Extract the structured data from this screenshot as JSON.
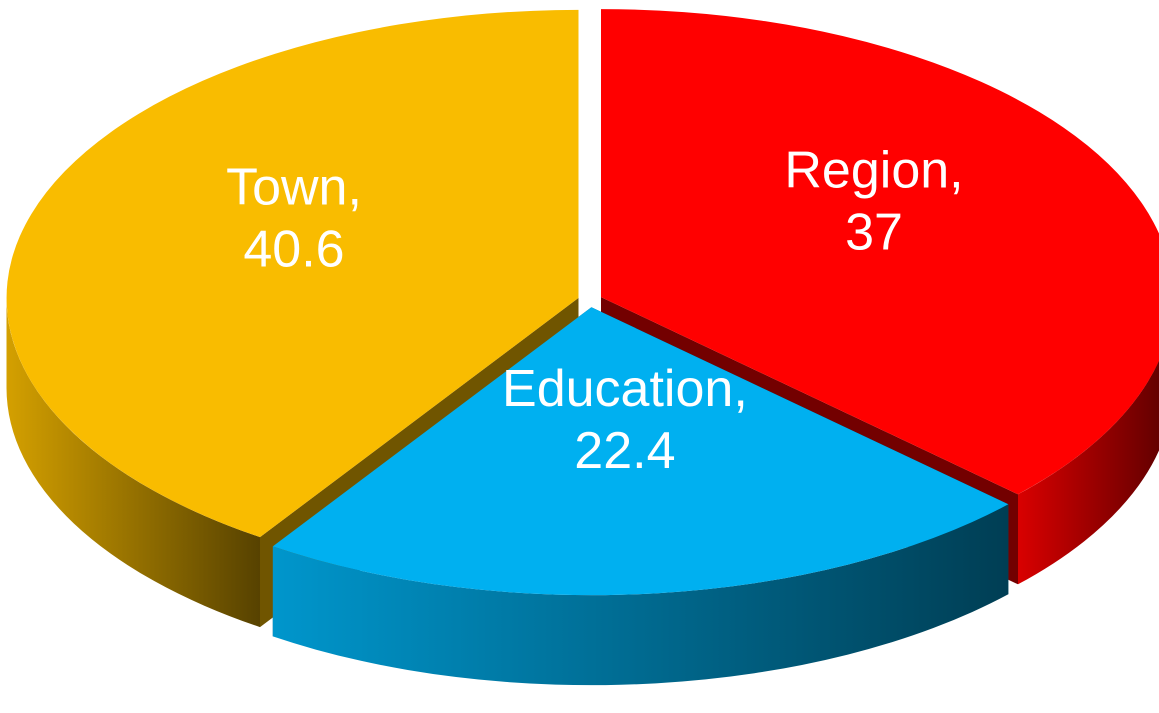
{
  "chart_data": {
    "type": "pie3d",
    "categories": [
      "Region",
      "Education",
      "Town"
    ],
    "values": [
      37,
      22.4,
      40.6
    ],
    "colors": [
      "#ff0000",
      "#00b0f0",
      "#f9bc00"
    ],
    "label_separator": ","
  }
}
